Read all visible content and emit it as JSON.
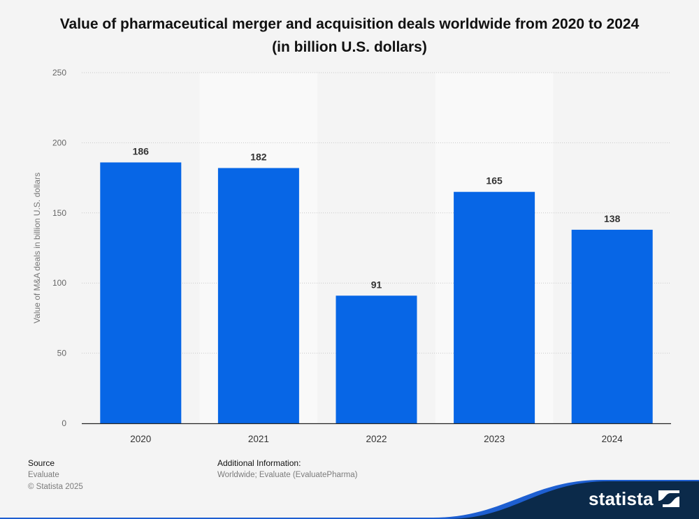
{
  "title": "Value of pharmaceutical merger and acquisition deals worldwide from 2020 to 2024 (in billion U.S. dollars)",
  "chart_data": {
    "type": "bar",
    "title": "Value of pharmaceutical merger and acquisition deals worldwide from 2020 to 2024 (in billion U.S. dollars)",
    "categories": [
      "2020",
      "2021",
      "2022",
      "2023",
      "2024"
    ],
    "values": [
      186,
      182,
      91,
      165,
      138
    ],
    "data_labels": [
      "186",
      "182",
      "91",
      "165",
      "138"
    ],
    "xlabel": "",
    "ylabel": "Value of M&A deals in billion U.S. dollars",
    "ylim": [
      0,
      250
    ],
    "yticks": [
      0,
      50,
      100,
      150,
      200,
      250
    ],
    "ytick_labels": [
      "0",
      "50",
      "100",
      "150",
      "200",
      "250"
    ],
    "grid": true,
    "bar_color": "#0766e6"
  },
  "footer": {
    "source_heading": "Source",
    "source_name": "Evaluate",
    "copyright": "© Statista 2025",
    "additional_heading": "Additional Information:",
    "additional_text": "Worldwide; Evaluate (EvaluatePharma)"
  },
  "brand": {
    "logo_text": "statista",
    "band_color": "#0b2a4a",
    "accent_color": "#1e5fd1"
  }
}
